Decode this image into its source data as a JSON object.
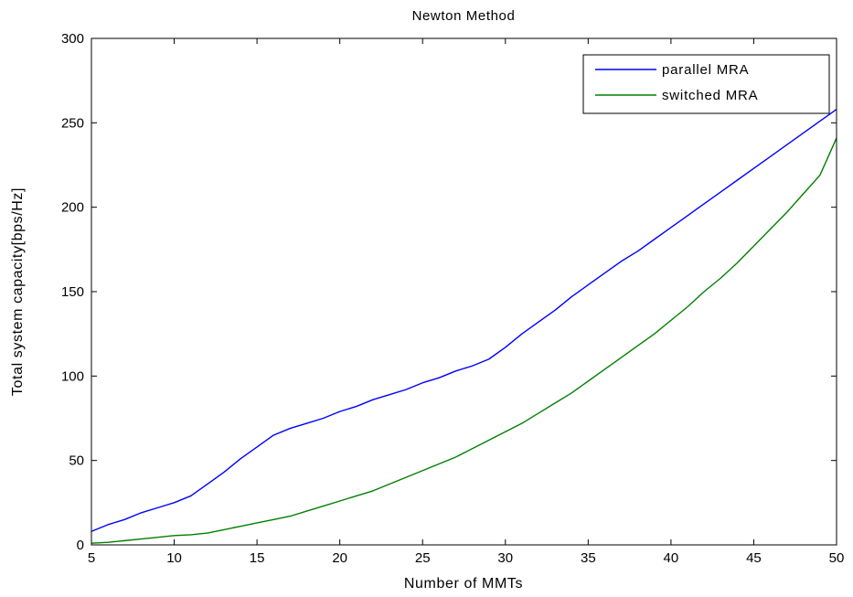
{
  "chart_data": {
    "type": "line",
    "title": "Newton Method",
    "xlabel": "Number of MMTs",
    "ylabel": "Total system capacity[bps/Hz]",
    "xlim": [
      5,
      50
    ],
    "ylim": [
      0,
      300
    ],
    "xticks": [
      5,
      10,
      15,
      20,
      25,
      30,
      35,
      40,
      45,
      50
    ],
    "yticks": [
      0,
      50,
      100,
      150,
      200,
      250,
      300
    ],
    "grid": false,
    "legend_position": "top-right",
    "series": [
      {
        "name": "parallel MRA",
        "color": "#0000ff",
        "x": [
          5,
          6,
          7,
          8,
          9,
          10,
          11,
          12,
          13,
          14,
          15,
          16,
          17,
          18,
          19,
          20,
          21,
          22,
          23,
          24,
          25,
          26,
          27,
          28,
          29,
          30,
          31,
          32,
          33,
          34,
          35,
          36,
          37,
          38,
          39,
          40,
          41,
          42,
          43,
          44,
          45,
          46,
          47,
          48,
          49,
          50
        ],
        "y": [
          8,
          12,
          15,
          19,
          22,
          25,
          29,
          36,
          43,
          51,
          58,
          65,
          69,
          72,
          75,
          79,
          82,
          86,
          89,
          92,
          96,
          99,
          103,
          106,
          110,
          117,
          125,
          132,
          139,
          147,
          154,
          161,
          168,
          174,
          181,
          188,
          195,
          202,
          209,
          216,
          223,
          230,
          237,
          244,
          251,
          258
        ]
      },
      {
        "name": "switched MRA",
        "color": "#008000",
        "x": [
          5,
          6,
          7,
          8,
          9,
          10,
          11,
          12,
          13,
          14,
          15,
          16,
          17,
          18,
          19,
          20,
          21,
          22,
          23,
          24,
          25,
          26,
          27,
          28,
          29,
          30,
          31,
          32,
          33,
          34,
          35,
          36,
          37,
          38,
          39,
          40,
          41,
          42,
          43,
          44,
          45,
          46,
          47,
          48,
          49,
          50
        ],
        "y": [
          1,
          1.5,
          2.5,
          3.5,
          4.5,
          5.5,
          6,
          7,
          9,
          11,
          13,
          15,
          17,
          20,
          23,
          26,
          29,
          32,
          36,
          40,
          44,
          48,
          52,
          57,
          62,
          67,
          72,
          78,
          84,
          90,
          97,
          104,
          111,
          118,
          125,
          133,
          141,
          150,
          158,
          167,
          177,
          187,
          197,
          208,
          219,
          241
        ]
      }
    ]
  }
}
